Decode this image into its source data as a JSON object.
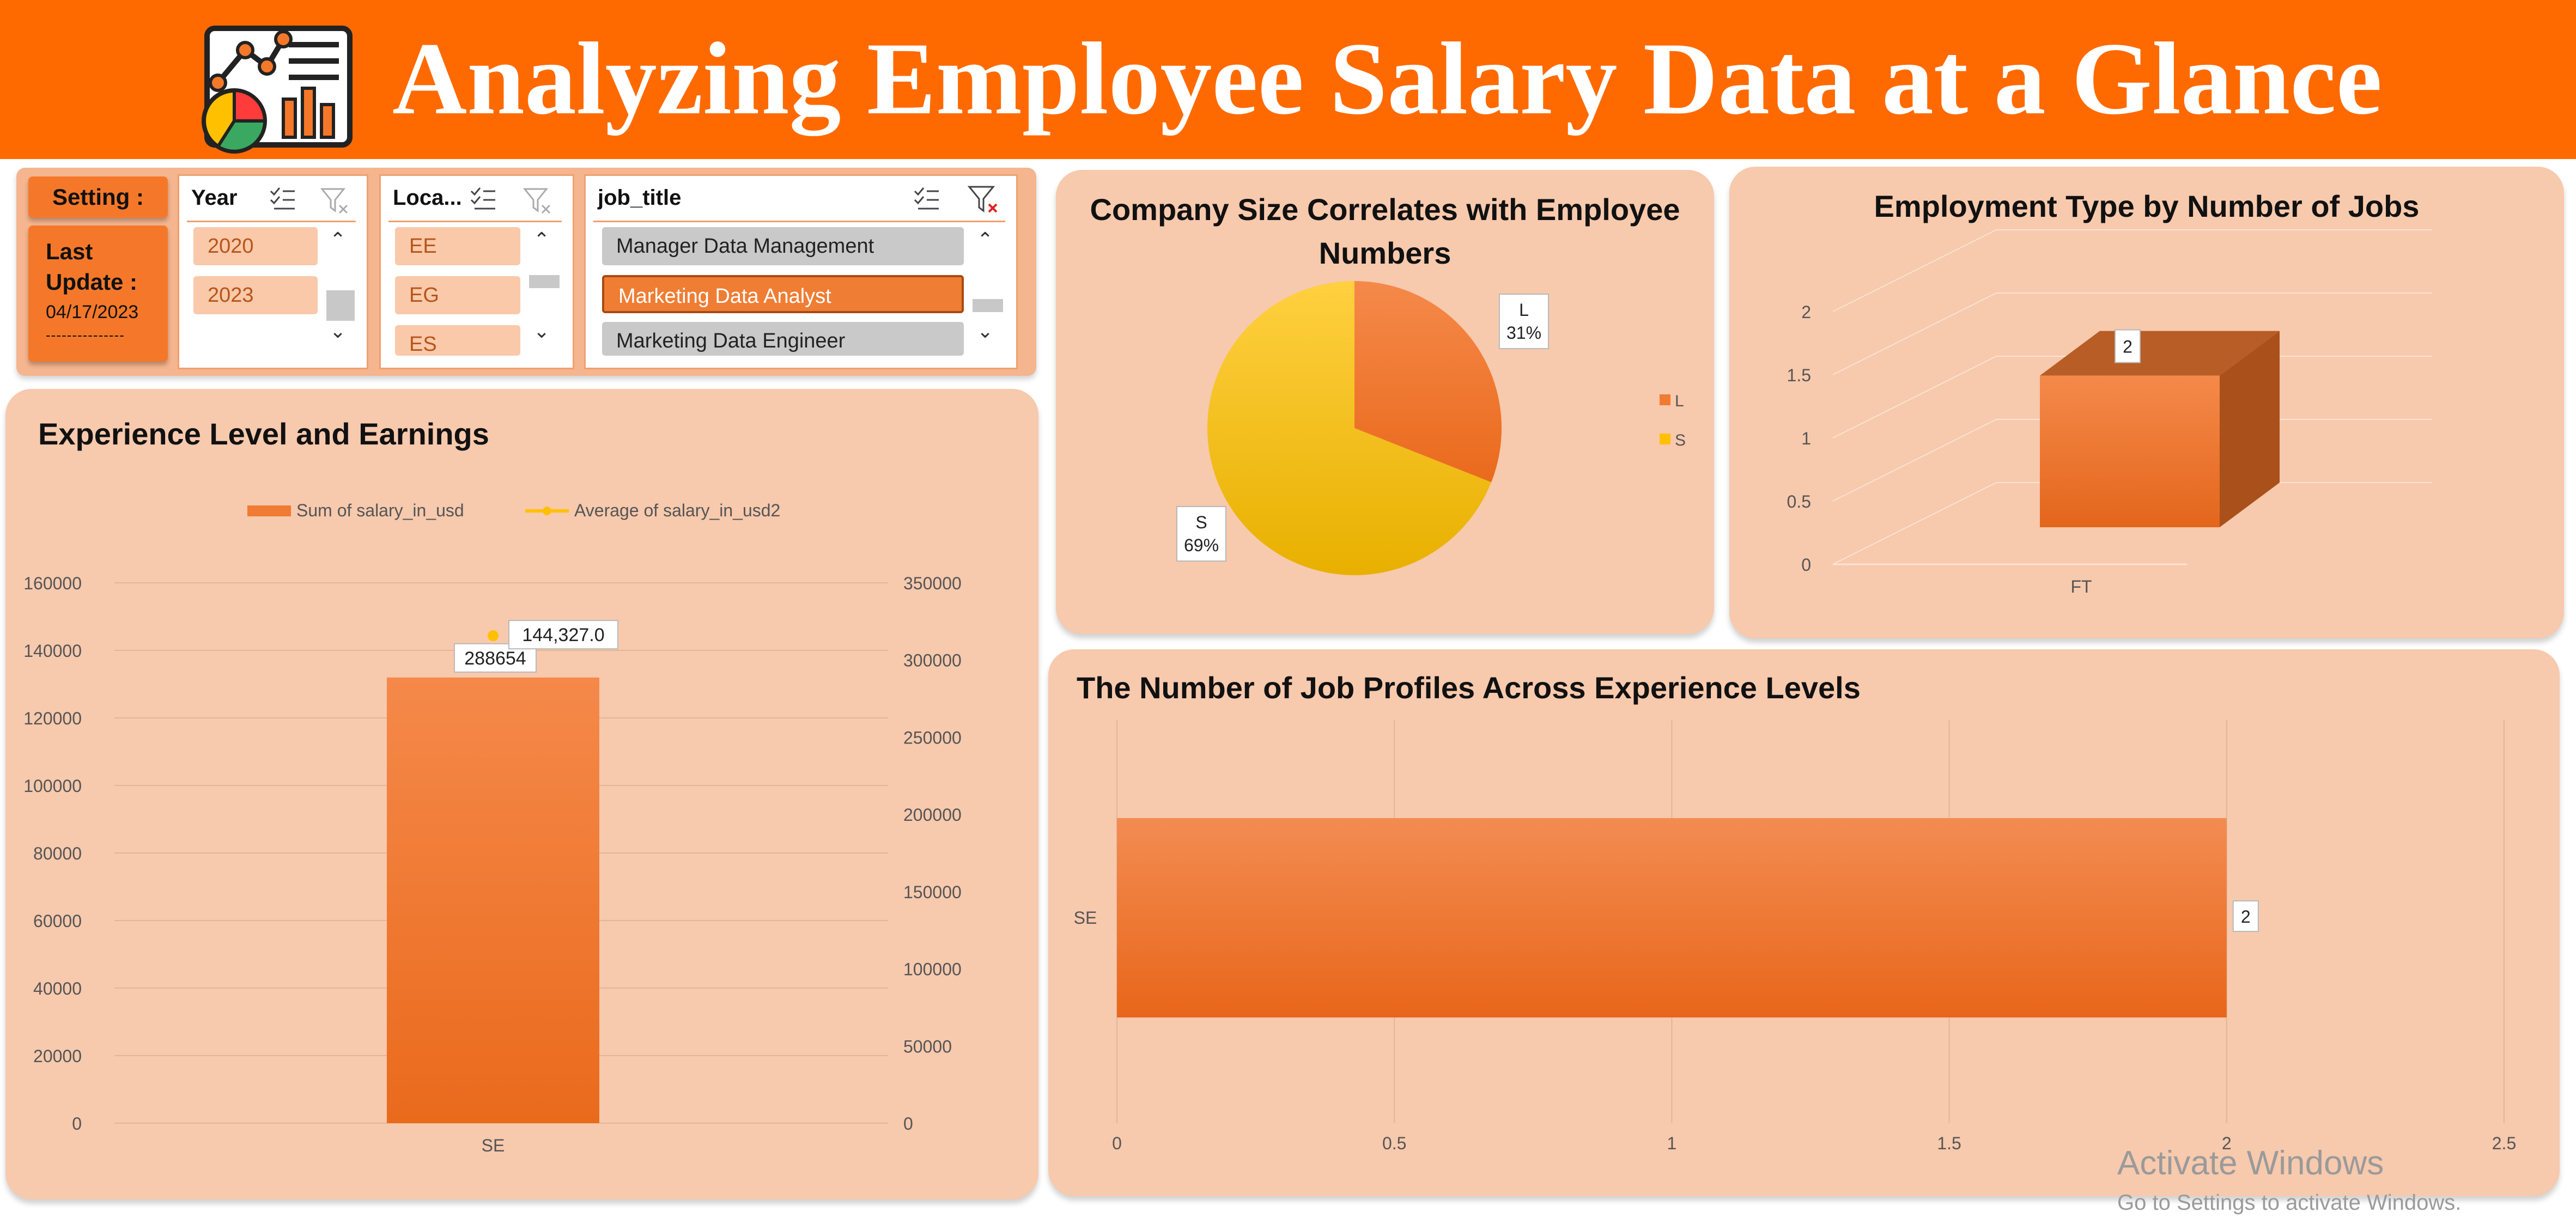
{
  "header": {
    "title": "Analyzing Employee Salary Data at a Glance",
    "background": "#ff6a00",
    "logo_icon": "analytics-report-icon"
  },
  "settings": {
    "setting_label": "Setting :",
    "last_update_label": "Last Update :",
    "last_update_date": "04/17/2023",
    "divider_text": "---------------"
  },
  "slicers": {
    "year": {
      "header": "Year",
      "items": [
        "2020",
        "2023"
      ]
    },
    "location": {
      "header": "Loca...",
      "items": [
        "EE",
        "EG",
        "ES"
      ]
    },
    "job_title": {
      "header": "job_title",
      "items": [
        "Manager Data Management",
        "Marketing Data Analyst",
        "Marketing Data Engineer"
      ],
      "selected": "Marketing Data Analyst"
    }
  },
  "panels": {
    "experience": {
      "title": "Experience Level and Earnings"
    },
    "company_size": {
      "title_line1": "Company Size Correlates with Employee",
      "title_line2": "Numbers"
    },
    "employment_type": {
      "title": "Employment Type by Number of Jobs"
    },
    "job_profiles": {
      "title": "The Number of Job Profiles Across Experience Levels"
    }
  },
  "chart_data": [
    {
      "type": "bar",
      "title": "Experience Level and Earnings",
      "categories": [
        "SE"
      ],
      "series": [
        {
          "name": "Sum of salary_in_usd",
          "values": [
            288654
          ],
          "axis": "secondary",
          "color": "#f07b33"
        },
        {
          "name": "Average of salary_in_usd2",
          "values": [
            144327.0
          ],
          "axis": "primary",
          "color": "#ffc000"
        }
      ],
      "y_ticks": [
        "0",
        "20000",
        "40000",
        "60000",
        "80000",
        "100000",
        "120000",
        "140000",
        "160000"
      ],
      "y2_ticks": [
        "0",
        "50000",
        "100000",
        "150000",
        "200000",
        "250000",
        "300000",
        "350000"
      ],
      "ylim": [
        0,
        160000
      ],
      "y2lim": [
        0,
        350000
      ],
      "data_labels": [
        "288654",
        "144,327.0"
      ],
      "legend": "top",
      "grid": true
    },
    {
      "type": "pie",
      "title": "Company Size Correlates with Employee Numbers",
      "categories": [
        "L",
        "S"
      ],
      "values": [
        31,
        69
      ],
      "labels": [
        "31%",
        "69%"
      ],
      "colors": [
        "#f07b33",
        "#ffc000"
      ],
      "legend": "right"
    },
    {
      "type": "bar",
      "title": "Employment Type by Number of Jobs",
      "categories": [
        "FT"
      ],
      "values": [
        2
      ],
      "y_ticks": [
        "0",
        "0.5",
        "1",
        "1.5",
        "2"
      ],
      "ylim": [
        0,
        2.5
      ],
      "data_labels": [
        "2"
      ],
      "three_d": true
    },
    {
      "type": "bar",
      "orientation": "horizontal",
      "title": "The Number of Job Profiles Across Experience Levels",
      "categories": [
        "SE"
      ],
      "values": [
        2
      ],
      "x_ticks": [
        "0",
        "0.5",
        "1",
        "1.5",
        "2",
        "2.5"
      ],
      "xlim": [
        0,
        2.5
      ],
      "data_labels": [
        "2"
      ],
      "grid": true
    }
  ],
  "watermark": {
    "line1": "Activate Windows",
    "line2": "Go to Settings to activate Windows."
  }
}
